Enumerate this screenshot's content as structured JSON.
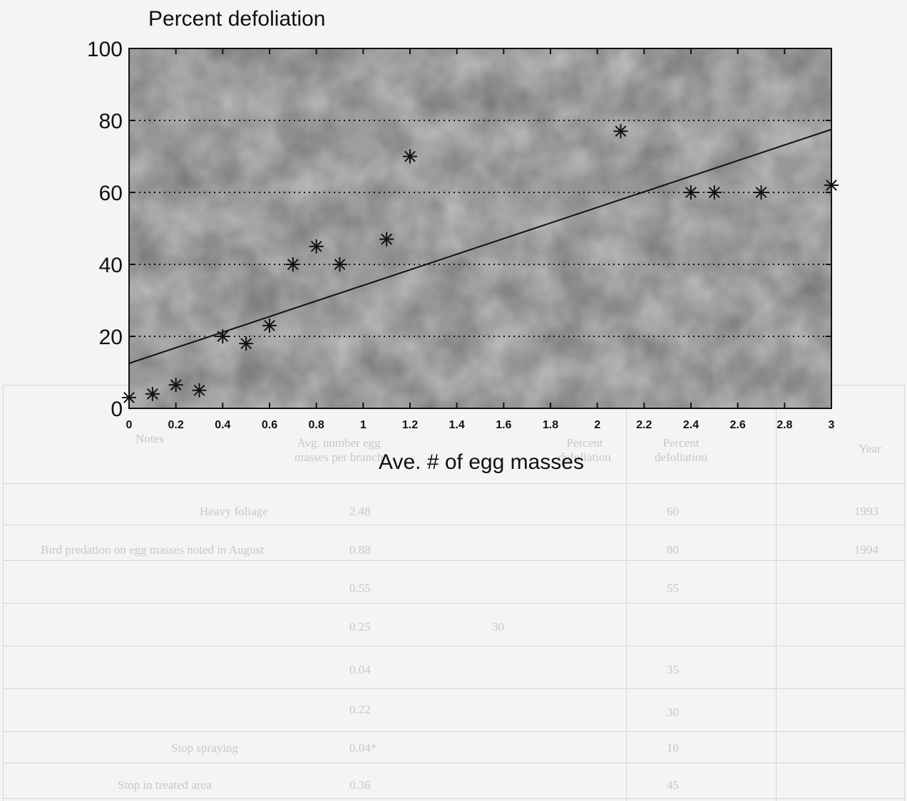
{
  "chart_data": {
    "type": "scatter",
    "title": "Percent defoliation",
    "xlabel": "Ave. # of egg masses",
    "ylabel": "",
    "xlim": [
      0,
      3
    ],
    "ylim": [
      0,
      100
    ],
    "x_ticks": [
      "0",
      "0.2",
      "0.4",
      "0.6",
      "0.8",
      "1",
      "1.2",
      "1.4",
      "1.6",
      "1.8",
      "2",
      "2.2",
      "2.4",
      "2.6",
      "2.8",
      "3"
    ],
    "y_ticks": [
      "0",
      "20",
      "40",
      "60",
      "80",
      "100"
    ],
    "grid": "dotted horizontal lines at 20, 40, 60, 80",
    "legend": "none",
    "marker": "asterisk",
    "points": [
      {
        "x": 0,
        "y": 3
      },
      {
        "x": 0.1,
        "y": 4
      },
      {
        "x": 0.2,
        "y": 6.5
      },
      {
        "x": 0.3,
        "y": 5
      },
      {
        "x": 0.4,
        "y": 20
      },
      {
        "x": 0.5,
        "y": 18
      },
      {
        "x": 0.6,
        "y": 23
      },
      {
        "x": 0.7,
        "y": 40
      },
      {
        "x": 0.8,
        "y": 45
      },
      {
        "x": 0.9,
        "y": 40
      },
      {
        "x": 1.1,
        "y": 47
      },
      {
        "x": 1.2,
        "y": 70
      },
      {
        "x": 2.1,
        "y": 77
      },
      {
        "x": 2.4,
        "y": 60
      },
      {
        "x": 2.5,
        "y": 60
      },
      {
        "x": 2.7,
        "y": 60
      },
      {
        "x": 3,
        "y": 62
      }
    ],
    "trend_line": {
      "x": [
        0,
        3
      ],
      "y": [
        12.5,
        77.5
      ]
    }
  },
  "background_table": {
    "headers": [
      "Year",
      "Percent defoliation",
      "Percent defoliation",
      "Avg. number egg masses per branch",
      "Notes"
    ],
    "rows": [
      [
        "1993",
        "60",
        "",
        "2.48",
        "Heavy foliage"
      ],
      [
        "1994",
        "80",
        "",
        "0.88",
        "Bird predation on egg masses noted in August"
      ],
      [
        "",
        "55",
        "",
        "0.55",
        ""
      ],
      [
        "",
        "",
        "30",
        "0.25",
        ""
      ],
      [
        "",
        "35",
        "",
        "0.04",
        ""
      ],
      [
        "",
        "30",
        "",
        "0.22",
        ""
      ],
      [
        "",
        "10",
        "",
        "0.04*",
        "Stop spraying"
      ],
      [
        "",
        "45",
        "",
        "0.36",
        "Stop in treated area"
      ]
    ]
  },
  "colors": {
    "axis": "#111111",
    "plot_bg": "#d9d9d9",
    "page_bg": "#f4f4f4"
  }
}
